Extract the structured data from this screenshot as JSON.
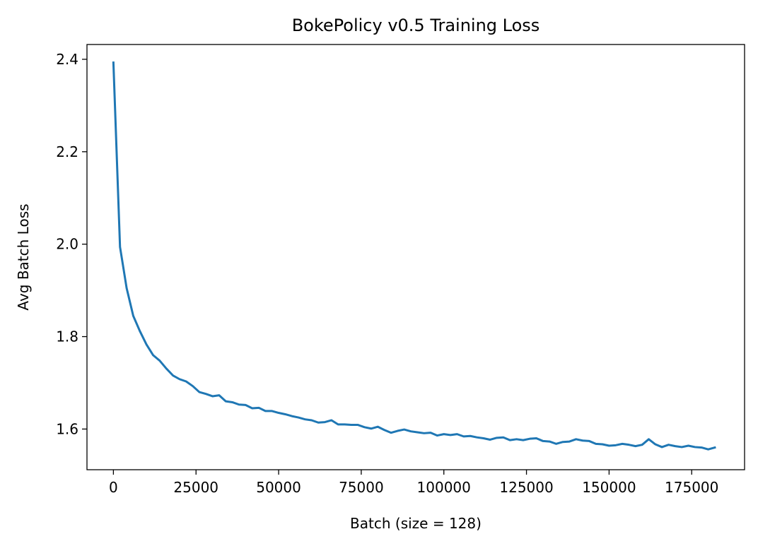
{
  "chart_data": {
    "type": "line",
    "title": "BokePolicy v0.5 Training Loss",
    "xlabel": "Batch (size = 128)",
    "ylabel": "Avg Batch Loss",
    "xlim": [
      -8000,
      191000
    ],
    "ylim": [
      1.512,
      2.432
    ],
    "xticks": [
      0,
      25000,
      50000,
      75000,
      100000,
      125000,
      150000,
      175000
    ],
    "xtick_labels": [
      "0",
      "25000",
      "50000",
      "75000",
      "100000",
      "125000",
      "150000",
      "175000"
    ],
    "yticks": [
      1.6,
      1.8,
      2.0,
      2.2,
      2.4
    ],
    "ytick_labels": [
      "1.6",
      "1.8",
      "2.0",
      "2.2",
      "2.4"
    ],
    "grid": false,
    "colors": {
      "line": "#1f77b4"
    },
    "series": [
      {
        "x": [
          0,
          2000,
          4000,
          6000,
          8000,
          10000,
          12000,
          14000,
          16000,
          18000,
          20000,
          22000,
          24000,
          26000,
          28000,
          30000,
          32000,
          34000,
          36000,
          38000,
          40000,
          42000,
          44000,
          46000,
          48000,
          50000,
          52000,
          54000,
          56000,
          58000,
          60000,
          62000,
          64000,
          66000,
          68000,
          70000,
          72000,
          74000,
          76000,
          78000,
          80000,
          82000,
          84000,
          86000,
          88000,
          90000,
          92000,
          94000,
          96000,
          98000,
          100000,
          102000,
          104000,
          106000,
          108000,
          110000,
          112000,
          114000,
          116000,
          118000,
          120000,
          122000,
          124000,
          126000,
          128000,
          130000,
          132000,
          134000,
          136000,
          138000,
          140000,
          142000,
          144000,
          146000,
          148000,
          150000,
          152000,
          154000,
          156000,
          158000,
          160000,
          162000,
          164000,
          166000,
          168000,
          170000,
          172000,
          174000,
          176000,
          178000,
          180000,
          182000
        ],
        "values": [
          2.393,
          1.994,
          1.905,
          1.845,
          1.812,
          1.783,
          1.76,
          1.748,
          1.731,
          1.716,
          1.708,
          1.703,
          1.693,
          1.68,
          1.676,
          1.671,
          1.673,
          1.66,
          1.658,
          1.653,
          1.652,
          1.645,
          1.646,
          1.639,
          1.639,
          1.635,
          1.632,
          1.628,
          1.625,
          1.621,
          1.619,
          1.614,
          1.615,
          1.619,
          1.61,
          1.61,
          1.609,
          1.609,
          1.604,
          1.601,
          1.605,
          1.598,
          1.592,
          1.596,
          1.599,
          1.595,
          1.593,
          1.591,
          1.592,
          1.586,
          1.589,
          1.587,
          1.589,
          1.584,
          1.585,
          1.582,
          1.58,
          1.577,
          1.581,
          1.582,
          1.576,
          1.578,
          1.576,
          1.579,
          1.58,
          1.574,
          1.573,
          1.568,
          1.572,
          1.573,
          1.578,
          1.575,
          1.574,
          1.568,
          1.567,
          1.564,
          1.565,
          1.568,
          1.566,
          1.563,
          1.566,
          1.578,
          1.567,
          1.561,
          1.566,
          1.563,
          1.561,
          1.564,
          1.561,
          1.56,
          1.556,
          1.56
        ]
      }
    ]
  }
}
